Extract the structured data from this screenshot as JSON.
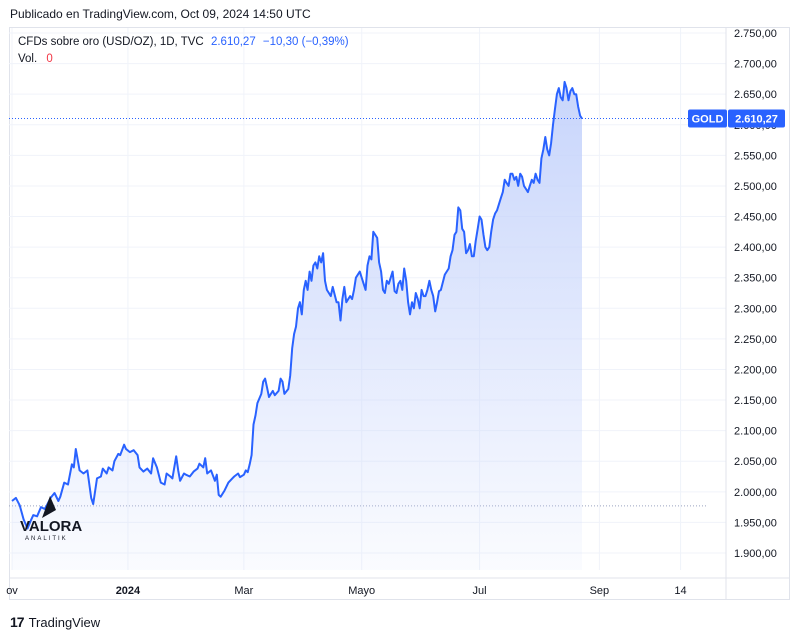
{
  "header": {
    "published": "Publicado en TradingView.com, Oct 09, 2024 14:50 UTC"
  },
  "legend": {
    "symbol": "CFDs sobre oro (USD/OZ), 1D, TVC",
    "value": "2.610,27",
    "change": "−10,30 (−0,39%)",
    "vol_label": "Vol.",
    "vol_value": "0"
  },
  "price_tag": {
    "name": "GOLD",
    "value": "2.610,27"
  },
  "watermark": {
    "brand": "VALORA",
    "sub": "ANALITIK"
  },
  "footer": {
    "logo": "17",
    "brand": "TradingView"
  },
  "colors": {
    "line": "#2962ff",
    "fill_top": "#c5d3fb",
    "grid": "#f0f3fa",
    "tag_bg": "#2962ff"
  },
  "chart_data": {
    "type": "area",
    "title": "",
    "xlabel": "",
    "ylabel": "",
    "ylim": [
      1880,
      2770
    ],
    "y_ticks": [
      "2.750,00",
      "2.700,00",
      "2.650,00",
      "2.600,00",
      "2.550,00",
      "2.500,00",
      "2.450,00",
      "2.400,00",
      "2.350,00",
      "2.300,00",
      "2.250,00",
      "2.200,00",
      "2.150,00",
      "2.100,00",
      "2.050,00",
      "2.000,00",
      "1.950,00",
      "1.900,00"
    ],
    "y_tick_values": [
      2750,
      2700,
      2650,
      2600,
      2550,
      2500,
      2450,
      2400,
      2350,
      2300,
      2250,
      2200,
      2150,
      2100,
      2050,
      2000,
      1950,
      1900
    ],
    "x_ticks": [
      {
        "label": "ov",
        "day": 0,
        "bold": false
      },
      {
        "label": "2024",
        "day": 60,
        "bold": true
      },
      {
        "label": "Mar",
        "day": 120,
        "bold": false
      },
      {
        "label": "Mayo",
        "day": 181,
        "bold": false
      },
      {
        "label": "Jul",
        "day": 242,
        "bold": false
      },
      {
        "label": "Sep",
        "day": 304,
        "bold": false
      },
      {
        "label": "14",
        "day": 346,
        "bold": false
      }
    ],
    "x_range": [
      0,
      354
    ],
    "last_value": 2610.27,
    "series": [
      {
        "values": [
          [
            0,
            1985
          ],
          [
            2,
            1990
          ],
          [
            4,
            1978
          ],
          [
            6,
            1955
          ],
          [
            8,
            1940
          ],
          [
            10,
            1955
          ],
          [
            11,
            1962
          ],
          [
            13,
            1960
          ],
          [
            15,
            1975
          ],
          [
            17,
            1972
          ],
          [
            18,
            1978
          ],
          [
            20,
            1990
          ],
          [
            22,
            1998
          ],
          [
            24,
            1985
          ],
          [
            25,
            1992
          ],
          [
            27,
            2015
          ],
          [
            29,
            2012
          ],
          [
            31,
            2045
          ],
          [
            32,
            2040
          ],
          [
            33,
            2070
          ],
          [
            35,
            2035
          ],
          [
            37,
            2030
          ],
          [
            39,
            2035
          ],
          [
            41,
            1990
          ],
          [
            42,
            1980
          ],
          [
            44,
            2022
          ],
          [
            46,
            2025
          ],
          [
            47,
            2038
          ],
          [
            49,
            2030
          ],
          [
            50,
            2040
          ],
          [
            52,
            2035
          ],
          [
            53,
            2050
          ],
          [
            55,
            2062
          ],
          [
            56,
            2060
          ],
          [
            58,
            2077
          ],
          [
            59,
            2070
          ],
          [
            61,
            2065
          ],
          [
            63,
            2068
          ],
          [
            65,
            2060
          ],
          [
            66,
            2040
          ],
          [
            68,
            2033
          ],
          [
            70,
            2038
          ],
          [
            72,
            2030
          ],
          [
            73,
            2055
          ],
          [
            75,
            2040
          ],
          [
            77,
            2015
          ],
          [
            79,
            2012
          ],
          [
            80,
            2030
          ],
          [
            82,
            2025
          ],
          [
            83,
            2022
          ],
          [
            85,
            2058
          ],
          [
            86,
            2035
          ],
          [
            87,
            2018
          ],
          [
            89,
            2030
          ],
          [
            90,
            2028
          ],
          [
            92,
            2025
          ],
          [
            94,
            2033
          ],
          [
            96,
            2038
          ],
          [
            97,
            2046
          ],
          [
            99,
            2040
          ],
          [
            100,
            2055
          ],
          [
            101,
            2030
          ],
          [
            103,
            2035
          ],
          [
            105,
            2018
          ],
          [
            106,
            2028
          ],
          [
            107,
            1995
          ],
          [
            108,
            1992
          ],
          [
            110,
            2002
          ],
          [
            112,
            2015
          ],
          [
            114,
            2022
          ],
          [
            115,
            2025
          ],
          [
            117,
            2030
          ],
          [
            118,
            2024
          ],
          [
            120,
            2028
          ],
          [
            121,
            2035
          ],
          [
            122,
            2032
          ],
          [
            123,
            2045
          ],
          [
            124,
            2060
          ],
          [
            125,
            2110
          ],
          [
            126,
            2125
          ],
          [
            127,
            2145
          ],
          [
            129,
            2160
          ],
          [
            130,
            2180
          ],
          [
            131,
            2185
          ],
          [
            132,
            2170
          ],
          [
            133,
            2155
          ],
          [
            134,
            2160
          ],
          [
            135,
            2165
          ],
          [
            136,
            2158
          ],
          [
            138,
            2165
          ],
          [
            139,
            2185
          ],
          [
            140,
            2180
          ],
          [
            141,
            2160
          ],
          [
            143,
            2168
          ],
          [
            144,
            2190
          ],
          [
            145,
            2235
          ],
          [
            146,
            2258
          ],
          [
            147,
            2270
          ],
          [
            148,
            2300
          ],
          [
            149,
            2310
          ],
          [
            150,
            2290
          ],
          [
            151,
            2330
          ],
          [
            152,
            2345
          ],
          [
            153,
            2330
          ],
          [
            154,
            2360
          ],
          [
            155,
            2345
          ],
          [
            156,
            2370
          ],
          [
            157,
            2375
          ],
          [
            158,
            2365
          ],
          [
            159,
            2385
          ],
          [
            160,
            2375
          ],
          [
            161,
            2390
          ],
          [
            162,
            2345
          ],
          [
            163,
            2330
          ],
          [
            165,
            2320
          ],
          [
            166,
            2335
          ],
          [
            168,
            2310
          ],
          [
            169,
            2310
          ],
          [
            170,
            2280
          ],
          [
            171,
            2315
          ],
          [
            172,
            2335
          ],
          [
            173,
            2310
          ],
          [
            175,
            2320
          ],
          [
            176,
            2315
          ],
          [
            177,
            2330
          ],
          [
            178,
            2350
          ],
          [
            180,
            2360
          ],
          [
            181,
            2350
          ],
          [
            183,
            2330
          ],
          [
            184,
            2370
          ],
          [
            185,
            2385
          ],
          [
            186,
            2380
          ],
          [
            187,
            2425
          ],
          [
            188,
            2420
          ],
          [
            189,
            2415
          ],
          [
            190,
            2375
          ],
          [
            191,
            2360
          ],
          [
            192,
            2330
          ],
          [
            193,
            2325
          ],
          [
            194,
            2345
          ],
          [
            195,
            2340
          ],
          [
            197,
            2360
          ],
          [
            198,
            2328
          ],
          [
            199,
            2325
          ],
          [
            200,
            2340
          ],
          [
            201,
            2345
          ],
          [
            202,
            2330
          ],
          [
            203,
            2365
          ],
          [
            204,
            2345
          ],
          [
            205,
            2310
          ],
          [
            206,
            2290
          ],
          [
            207,
            2310
          ],
          [
            208,
            2300
          ],
          [
            209,
            2325
          ],
          [
            210,
            2315
          ],
          [
            211,
            2300
          ],
          [
            212,
            2330
          ],
          [
            213,
            2320
          ],
          [
            214,
            2320
          ],
          [
            215,
            2330
          ],
          [
            216,
            2345
          ],
          [
            217,
            2330
          ],
          [
            218,
            2320
          ],
          [
            219,
            2295
          ],
          [
            220,
            2310
          ],
          [
            221,
            2328
          ],
          [
            222,
            2330
          ],
          [
            224,
            2355
          ],
          [
            225,
            2360
          ],
          [
            226,
            2365
          ],
          [
            227,
            2385
          ],
          [
            228,
            2395
          ],
          [
            229,
            2420
          ],
          [
            230,
            2425
          ],
          [
            231,
            2465
          ],
          [
            232,
            2460
          ],
          [
            233,
            2430
          ],
          [
            234,
            2425
          ],
          [
            235,
            2390
          ],
          [
            236,
            2395
          ],
          [
            237,
            2405
          ],
          [
            238,
            2385
          ],
          [
            239,
            2385
          ],
          [
            240,
            2410
          ],
          [
            241,
            2430
          ],
          [
            242,
            2450
          ],
          [
            243,
            2445
          ],
          [
            244,
            2420
          ],
          [
            245,
            2400
          ],
          [
            246,
            2395
          ],
          [
            247,
            2400
          ],
          [
            248,
            2425
          ],
          [
            249,
            2445
          ],
          [
            250,
            2455
          ],
          [
            251,
            2460
          ],
          [
            252,
            2470
          ],
          [
            253,
            2480
          ],
          [
            254,
            2490
          ],
          [
            255,
            2510
          ],
          [
            256,
            2505
          ],
          [
            257,
            2500
          ],
          [
            258,
            2520
          ],
          [
            259,
            2520
          ],
          [
            260,
            2510
          ],
          [
            261,
            2515
          ],
          [
            262,
            2500
          ],
          [
            263,
            2520
          ],
          [
            264,
            2515
          ],
          [
            265,
            2500
          ],
          [
            266,
            2495
          ],
          [
            267,
            2490
          ],
          [
            268,
            2500
          ],
          [
            269,
            2510
          ],
          [
            270,
            2505
          ],
          [
            271,
            2520
          ],
          [
            272,
            2510
          ],
          [
            273,
            2505
          ],
          [
            274,
            2545
          ],
          [
            275,
            2560
          ],
          [
            276,
            2580
          ],
          [
            277,
            2560
          ],
          [
            278,
            2550
          ],
          [
            279,
            2570
          ],
          [
            280,
            2600
          ],
          [
            281,
            2625
          ],
          [
            282,
            2650
          ],
          [
            283,
            2660
          ],
          [
            284,
            2645
          ],
          [
            285,
            2640
          ],
          [
            286,
            2670
          ],
          [
            287,
            2660
          ],
          [
            288,
            2640
          ],
          [
            289,
            2655
          ],
          [
            290,
            2660
          ],
          [
            291,
            2650
          ],
          [
            292,
            2650
          ],
          [
            293,
            2630
          ],
          [
            294,
            2615
          ],
          [
            295,
            2610
          ]
        ]
      }
    ]
  }
}
